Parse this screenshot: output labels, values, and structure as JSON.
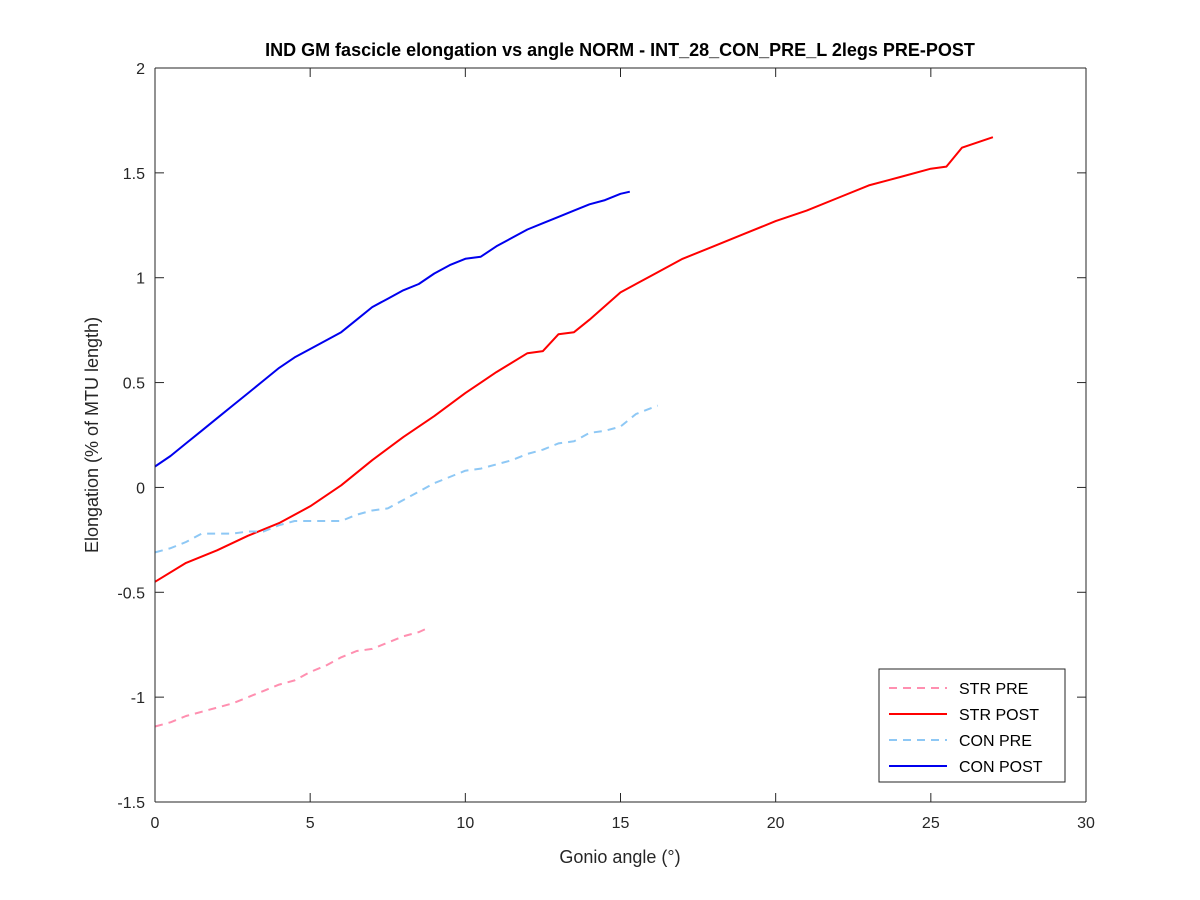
{
  "chart_data": {
    "type": "line",
    "title": "IND GM fascicle elongation vs angle NORM - INT_28_CON_PRE_L 2legs PRE-POST",
    "xlabel": "Gonio angle (°)",
    "ylabel": "Elongation (% of MTU length)",
    "xlim": [
      0,
      30
    ],
    "ylim": [
      -1.5,
      2
    ],
    "xticks": [
      0,
      5,
      10,
      15,
      20,
      25,
      30
    ],
    "yticks": [
      -1.5,
      -1,
      -0.5,
      0,
      0.5,
      1,
      1.5,
      2
    ],
    "xtick_labels": [
      "0",
      "5",
      "10",
      "15",
      "20",
      "25",
      "30"
    ],
    "ytick_labels": [
      "-1.5",
      "-1",
      "-0.5",
      "0",
      "0.5",
      "1",
      "1.5",
      "2"
    ],
    "grid": false,
    "legend_position": "bottom-right",
    "series": [
      {
        "name": "STR PRE",
        "color": "#ff8fb0",
        "dash": "dashed",
        "x": [
          0,
          0.5,
          1,
          1.5,
          2,
          2.5,
          3,
          3.5,
          4,
          4.5,
          5,
          5.5,
          6,
          6.5,
          7,
          7.5,
          8,
          8.5,
          8.8
        ],
        "y": [
          -1.14,
          -1.12,
          -1.09,
          -1.07,
          -1.05,
          -1.03,
          -1.0,
          -0.97,
          -0.94,
          -0.92,
          -0.88,
          -0.85,
          -0.81,
          -0.78,
          -0.77,
          -0.74,
          -0.71,
          -0.69,
          -0.67
        ]
      },
      {
        "name": "STR POST",
        "color": "#ff0000",
        "dash": "solid",
        "x": [
          0,
          1,
          2,
          3,
          4,
          5,
          6,
          7,
          8,
          9,
          10,
          11,
          12,
          12.5,
          13,
          13.5,
          14,
          15,
          16,
          17,
          18,
          19,
          20,
          21,
          22,
          23,
          24,
          25,
          25.5,
          26,
          27
        ],
        "y": [
          -0.45,
          -0.36,
          -0.3,
          -0.23,
          -0.17,
          -0.09,
          0.01,
          0.13,
          0.24,
          0.34,
          0.45,
          0.55,
          0.64,
          0.65,
          0.73,
          0.74,
          0.8,
          0.93,
          1.01,
          1.09,
          1.15,
          1.21,
          1.27,
          1.32,
          1.38,
          1.44,
          1.48,
          1.52,
          1.53,
          1.62,
          1.67
        ]
      },
      {
        "name": "CON PRE",
        "color": "#8ec8f5",
        "dash": "dashed",
        "x": [
          0,
          0.5,
          1,
          1.5,
          2,
          2.5,
          3,
          3.5,
          4,
          4.5,
          5,
          5.5,
          6,
          6.5,
          7,
          7.5,
          8,
          9,
          10,
          10.5,
          11,
          11.5,
          12,
          12.5,
          13,
          13.5,
          14,
          14.5,
          15,
          15.5,
          16.2
        ],
        "y": [
          -0.31,
          -0.29,
          -0.26,
          -0.22,
          -0.22,
          -0.22,
          -0.21,
          -0.21,
          -0.18,
          -0.16,
          -0.16,
          -0.16,
          -0.16,
          -0.13,
          -0.11,
          -0.1,
          -0.06,
          0.02,
          0.08,
          0.09,
          0.11,
          0.13,
          0.16,
          0.18,
          0.21,
          0.22,
          0.26,
          0.27,
          0.29,
          0.35,
          0.39
        ]
      },
      {
        "name": "CON POST",
        "color": "#0000ee",
        "dash": "solid",
        "x": [
          0,
          0.5,
          1,
          1.5,
          2,
          2.5,
          3,
          3.5,
          4,
          4.5,
          5,
          5.5,
          6,
          6.5,
          7,
          7.5,
          8,
          8.5,
          9,
          9.5,
          10,
          10.5,
          11,
          11.5,
          12,
          12.5,
          13,
          13.5,
          14,
          14.5,
          15,
          15.3
        ],
        "y": [
          0.1,
          0.15,
          0.21,
          0.27,
          0.33,
          0.39,
          0.45,
          0.51,
          0.57,
          0.62,
          0.66,
          0.7,
          0.74,
          0.8,
          0.86,
          0.9,
          0.94,
          0.97,
          1.02,
          1.06,
          1.09,
          1.1,
          1.15,
          1.19,
          1.23,
          1.26,
          1.29,
          1.32,
          1.35,
          1.37,
          1.4,
          1.41
        ]
      }
    ]
  }
}
